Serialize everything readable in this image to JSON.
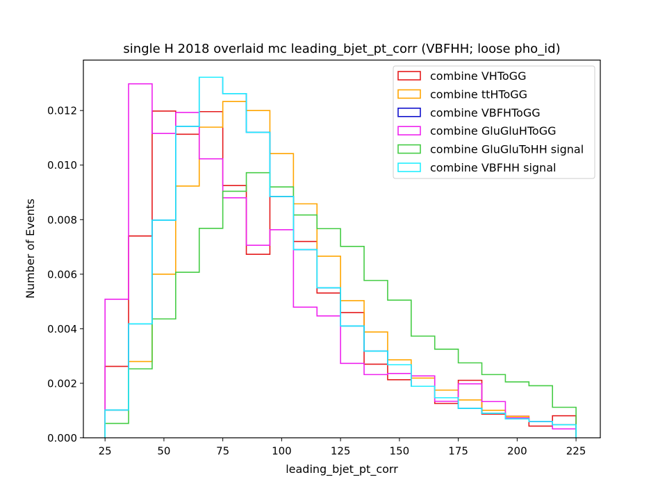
{
  "chart_data": {
    "type": "step-histogram",
    "title": "single H 2018 overlaid mc leading_bjet_pt_corr (VBFHH; loose pho_id)",
    "xlabel": "leading_bjet_pt_corr",
    "ylabel": "Number of Events",
    "xlim": [
      15.8,
      235.3
    ],
    "ylim": [
      0,
      0.01385
    ],
    "xticks": [
      25,
      50,
      75,
      100,
      125,
      150,
      175,
      200,
      225
    ],
    "xtick_labels": [
      "25",
      "50",
      "75",
      "100",
      "125",
      "150",
      "175",
      "200",
      "225"
    ],
    "yticks": [
      0,
      0.002,
      0.004,
      0.006,
      0.008,
      0.01,
      0.012
    ],
    "ytick_labels": [
      "0.000",
      "0.002",
      "0.004",
      "0.006",
      "0.008",
      "0.010",
      "0.012"
    ],
    "bin_edges": [
      25,
      35,
      45,
      55,
      65,
      75,
      85,
      95,
      105,
      115,
      125,
      135,
      145,
      155,
      165,
      175,
      185,
      195,
      205,
      215,
      225
    ],
    "legend_position": "upper-right",
    "series": [
      {
        "name": "combine VHToGG",
        "color": "#e41a1c",
        "values": [
          0.00262,
          0.0074,
          0.01198,
          0.01113,
          0.01196,
          0.00925,
          0.00673,
          0.00885,
          0.0072,
          0.00531,
          0.00459,
          0.0027,
          0.00213,
          0.00189,
          0.00126,
          0.00211,
          0.00087,
          0.00079,
          0.00043,
          0.00081
        ]
      },
      {
        "name": "combine ttHToGG",
        "color": "#ffa500",
        "values": [
          0.00102,
          0.0028,
          0.006,
          0.00923,
          0.01139,
          0.01233,
          0.012,
          0.01042,
          0.00858,
          0.00666,
          0.00503,
          0.00388,
          0.00286,
          0.00219,
          0.00175,
          0.00139,
          0.00101,
          0.00078,
          0.0006,
          0.00048
        ]
      },
      {
        "name": "combine VBFHToGG",
        "color": "#1010cc",
        "values": [
          0.00102,
          0.00418,
          0.00798,
          0.01142,
          0.01322,
          0.01262,
          0.0112,
          0.00885,
          0.0069,
          0.0055,
          0.0041,
          0.00318,
          0.00268,
          0.00189,
          0.00147,
          0.00108,
          0.0009,
          0.0007,
          0.0006,
          0.00048
        ]
      },
      {
        "name": "combine GluGluHToGG",
        "color": "#ee22ee",
        "values": [
          0.00508,
          0.01298,
          0.01116,
          0.01193,
          0.01023,
          0.0088,
          0.00706,
          0.00763,
          0.00479,
          0.00447,
          0.00273,
          0.00232,
          0.00236,
          0.00227,
          0.00134,
          0.00198,
          0.00133,
          0.00073,
          0.0006,
          0.00033
        ]
      },
      {
        "name": "combine GluGluToHH signal",
        "color": "#44cc44",
        "values": [
          0.00053,
          0.00253,
          0.00436,
          0.00607,
          0.00768,
          0.00904,
          0.00972,
          0.0092,
          0.00817,
          0.00767,
          0.00702,
          0.00577,
          0.00505,
          0.00373,
          0.00325,
          0.00275,
          0.00232,
          0.00205,
          0.00191,
          0.00112
        ]
      },
      {
        "name": "combine VBFHH signal",
        "color": "#22eeff",
        "values": [
          0.00102,
          0.00418,
          0.00798,
          0.01142,
          0.01322,
          0.01262,
          0.0112,
          0.00885,
          0.0069,
          0.0055,
          0.0041,
          0.00318,
          0.00268,
          0.00189,
          0.00147,
          0.00108,
          0.0009,
          0.0007,
          0.0006,
          0.00048
        ]
      }
    ]
  }
}
